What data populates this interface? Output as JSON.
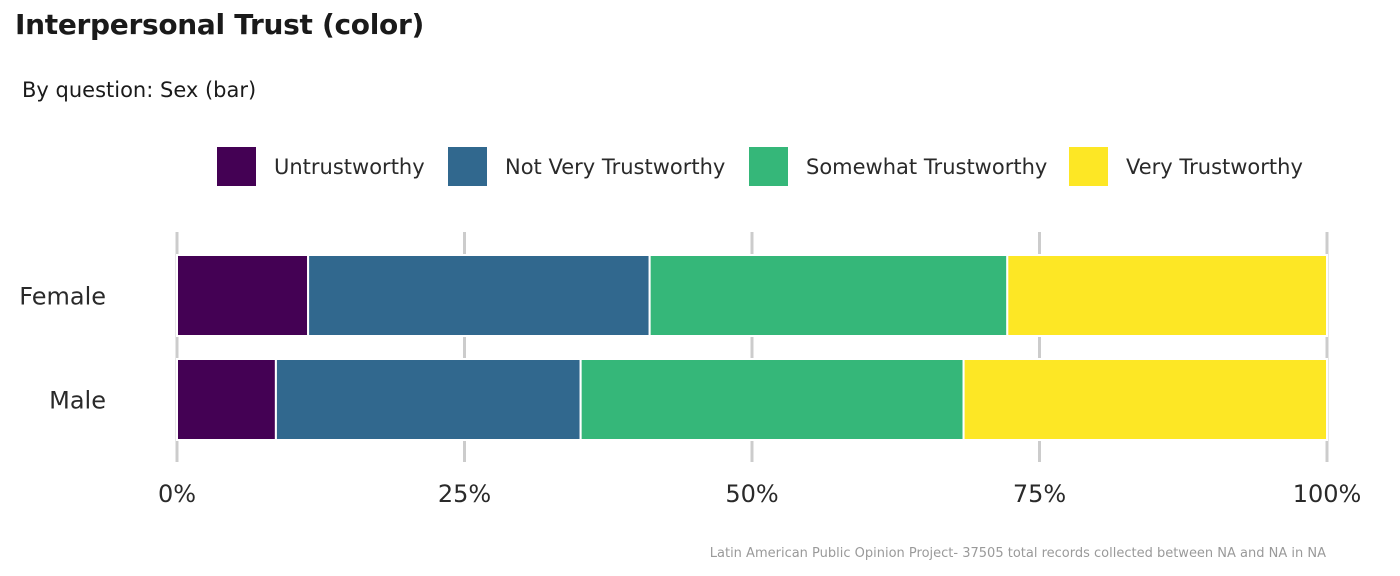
{
  "title": "Interpersonal Trust (color)",
  "subtitle": "By question: Sex (bar)",
  "caption": "Latin American Public Opinion Project- 37505 total records collected between NA and NA in  NA",
  "chart_data": {
    "type": "bar",
    "orientation": "horizontal",
    "stacked": "percent",
    "categories": [
      "Female",
      "Male"
    ],
    "series": [
      {
        "name": "Untrustworthy",
        "color": "#440154",
        "values": [
          11.4,
          8.6
        ]
      },
      {
        "name": "Not Very Trustworthy",
        "color": "#31688E",
        "values": [
          29.7,
          26.5
        ]
      },
      {
        "name": "Somewhat Trustworthy",
        "color": "#35B779",
        "values": [
          31.1,
          33.3
        ]
      },
      {
        "name": "Very Trustworthy",
        "color": "#FDE725",
        "values": [
          27.8,
          31.6
        ]
      }
    ],
    "x_ticks": [
      0,
      25,
      50,
      75,
      100
    ],
    "x_tick_labels": [
      "0%",
      "25%",
      "50%",
      "75%",
      "100%"
    ],
    "xlim": [
      0,
      100
    ],
    "legend_position": "top",
    "grid": true
  }
}
